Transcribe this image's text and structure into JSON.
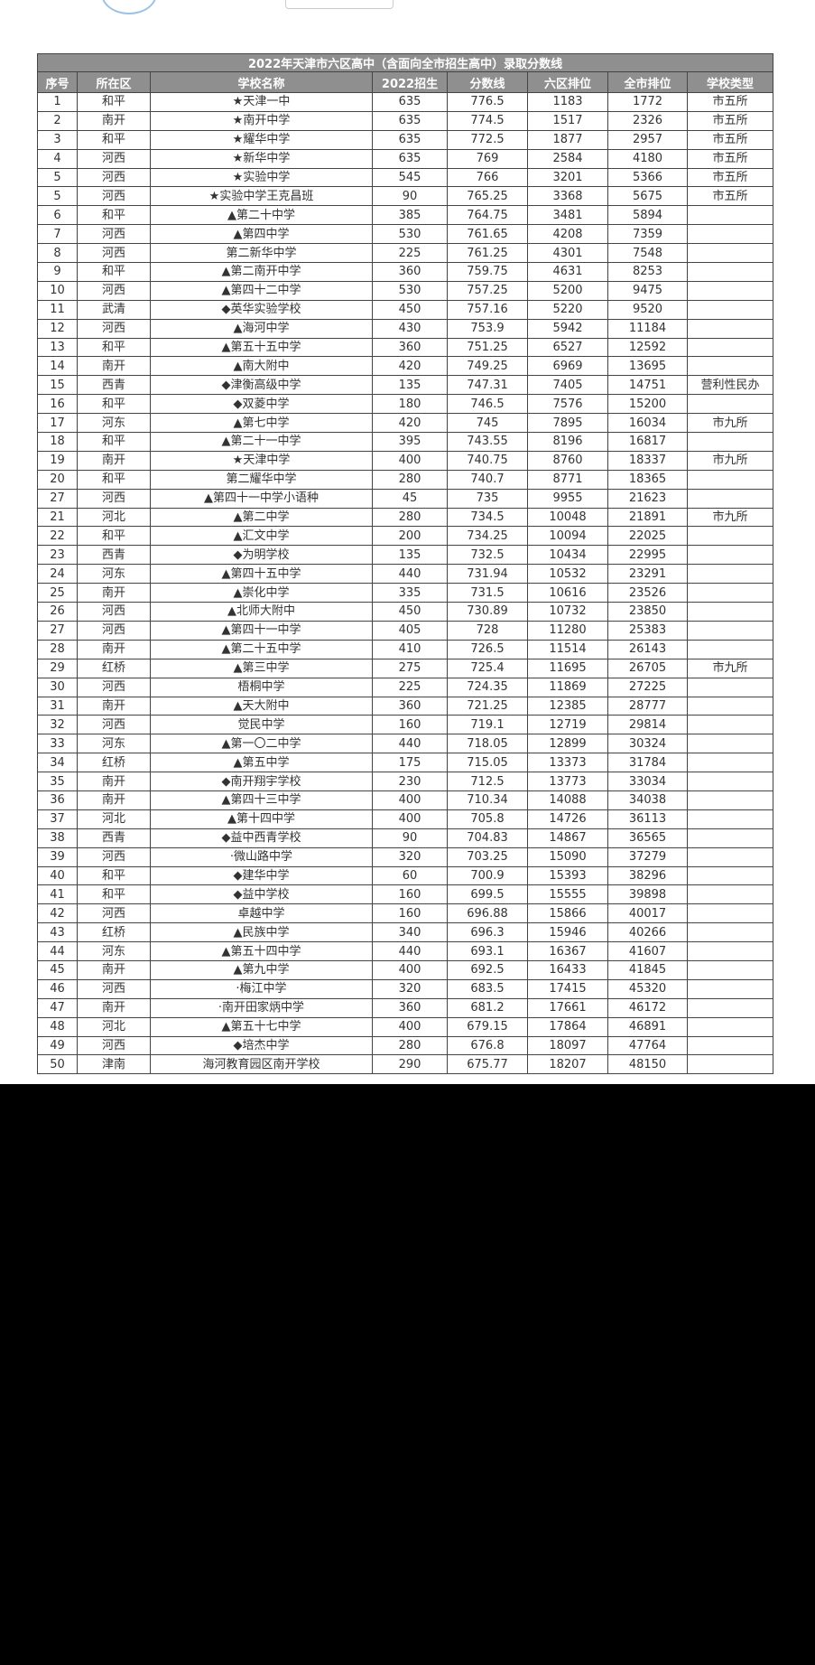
{
  "table": {
    "title": "2022年天津市六区高中（含面向全市招生高中）录取分数线",
    "columns": [
      "序号",
      "所在区",
      "学校名称",
      "2022招生",
      "分数线",
      "六区排位",
      "全市排位",
      "学校类型"
    ],
    "rows": [
      [
        "1",
        "和平",
        "★天津一中",
        "635",
        "776.5",
        "1183",
        "1772",
        "市五所"
      ],
      [
        "2",
        "南开",
        "★南开中学",
        "635",
        "774.5",
        "1517",
        "2326",
        "市五所"
      ],
      [
        "3",
        "和平",
        "★耀华中学",
        "635",
        "772.5",
        "1877",
        "2957",
        "市五所"
      ],
      [
        "4",
        "河西",
        "★新华中学",
        "635",
        "769",
        "2584",
        "4180",
        "市五所"
      ],
      [
        "5",
        "河西",
        "★实验中学",
        "545",
        "766",
        "3201",
        "5366",
        "市五所"
      ],
      [
        "5",
        "河西",
        "★实验中学王克昌班",
        "90",
        "765.25",
        "3368",
        "5675",
        "市五所"
      ],
      [
        "6",
        "和平",
        "▲第二十中学",
        "385",
        "764.75",
        "3481",
        "5894"
      ],
      [
        "7",
        "河西",
        "▲第四中学",
        "530",
        "761.65",
        "4208",
        "7359"
      ],
      [
        "8",
        "河西",
        "第二新华中学",
        "225",
        "761.25",
        "4301",
        "7548"
      ],
      [
        "9",
        "和平",
        "▲第二南开中学",
        "360",
        "759.75",
        "4631",
        "8253"
      ],
      [
        "10",
        "河西",
        "▲第四十二中学",
        "530",
        "757.25",
        "5200",
        "9475"
      ],
      [
        "11",
        "武清",
        "◆英华实验学校",
        "450",
        "757.16",
        "5220",
        "9520"
      ],
      [
        "12",
        "河西",
        "▲海河中学",
        "430",
        "753.9",
        "5942",
        "11184"
      ],
      [
        "13",
        "和平",
        "▲第五十五中学",
        "360",
        "751.25",
        "6527",
        "12592"
      ],
      [
        "14",
        "南开",
        "▲南大附中",
        "420",
        "749.25",
        "6969",
        "13695"
      ],
      [
        "15",
        "西青",
        "◆津衡高级中学",
        "135",
        "747.31",
        "7405",
        "14751",
        "营利性民办"
      ],
      [
        "16",
        "和平",
        "◆双菱中学",
        "180",
        "746.5",
        "7576",
        "15200"
      ],
      [
        "17",
        "河东",
        "▲第七中学",
        "420",
        "745",
        "7895",
        "16034",
        "市九所"
      ],
      [
        "18",
        "和平",
        "▲第二十一中学",
        "395",
        "743.55",
        "8196",
        "16817"
      ],
      [
        "19",
        "南开",
        "★天津中学",
        "400",
        "740.75",
        "8760",
        "18337",
        "市九所"
      ],
      [
        "20",
        "和平",
        "第二耀华中学",
        "280",
        "740.7",
        "8771",
        "18365"
      ],
      [
        "27",
        "河西",
        "▲第四十一中学小语种",
        "45",
        "735",
        "9955",
        "21623"
      ],
      [
        "21",
        "河北",
        "▲第二中学",
        "280",
        "734.5",
        "10048",
        "21891",
        "市九所"
      ],
      [
        "22",
        "和平",
        "▲汇文中学",
        "200",
        "734.25",
        "10094",
        "22025"
      ],
      [
        "23",
        "西青",
        "◆为明学校",
        "135",
        "732.5",
        "10434",
        "22995"
      ],
      [
        "24",
        "河东",
        "▲第四十五中学",
        "440",
        "731.94",
        "10532",
        "23291"
      ],
      [
        "25",
        "南开",
        "▲崇化中学",
        "335",
        "731.5",
        "10616",
        "23526"
      ],
      [
        "26",
        "河西",
        "▲北师大附中",
        "450",
        "730.89",
        "10732",
        "23850"
      ],
      [
        "27",
        "河西",
        "▲第四十一中学",
        "405",
        "728",
        "11280",
        "25383"
      ],
      [
        "28",
        "南开",
        "▲第二十五中学",
        "410",
        "726.5",
        "11514",
        "26143"
      ],
      [
        "29",
        "红桥",
        "▲第三中学",
        "275",
        "725.4",
        "11695",
        "26705",
        "市九所"
      ],
      [
        "30",
        "河西",
        "梧桐中学",
        "225",
        "724.35",
        "11869",
        "27225"
      ],
      [
        "31",
        "南开",
        "▲天大附中",
        "360",
        "721.25",
        "12385",
        "28777"
      ],
      [
        "32",
        "河西",
        "觉民中学",
        "160",
        "719.1",
        "12719",
        "29814"
      ],
      [
        "33",
        "河东",
        "▲第一〇二中学",
        "440",
        "718.05",
        "12899",
        "30324"
      ],
      [
        "34",
        "红桥",
        "▲第五中学",
        "175",
        "715.05",
        "13373",
        "31784"
      ],
      [
        "35",
        "南开",
        "◆南开翔宇学校",
        "230",
        "712.5",
        "13773",
        "33034"
      ],
      [
        "36",
        "南开",
        "▲第四十三中学",
        "400",
        "710.34",
        "14088",
        "34038"
      ],
      [
        "37",
        "河北",
        "▲第十四中学",
        "400",
        "705.8",
        "14726",
        "36113"
      ],
      [
        "38",
        "西青",
        "◆益中西青学校",
        "90",
        "704.83",
        "14867",
        "36565"
      ],
      [
        "39",
        "河西",
        "·微山路中学",
        "320",
        "703.25",
        "15090",
        "37279"
      ],
      [
        "40",
        "和平",
        "◆建华中学",
        "60",
        "700.9",
        "15393",
        "38296"
      ],
      [
        "41",
        "和平",
        "◆益中学校",
        "160",
        "699.5",
        "15555",
        "39898"
      ],
      [
        "42",
        "河西",
        "卓越中学",
        "160",
        "696.88",
        "15866",
        "40017"
      ],
      [
        "43",
        "红桥",
        "▲民族中学",
        "340",
        "696.3",
        "15946",
        "40266"
      ],
      [
        "44",
        "河东",
        "▲第五十四中学",
        "440",
        "693.1",
        "16367",
        "41607"
      ],
      [
        "45",
        "南开",
        "▲第九中学",
        "400",
        "692.5",
        "16433",
        "41845"
      ],
      [
        "46",
        "河西",
        "·梅江中学",
        "320",
        "683.5",
        "17415",
        "45320"
      ],
      [
        "47",
        "南开",
        "·南开田家炳中学",
        "360",
        "681.2",
        "17661",
        "46172"
      ],
      [
        "48",
        "河北",
        "▲第五十七中学",
        "400",
        "679.15",
        "17864",
        "46891"
      ],
      [
        "49",
        "河西",
        "◆培杰中学",
        "280",
        "676.8",
        "18097",
        "47764"
      ],
      [
        "50",
        "津南",
        "海河教育园区南开学校",
        "290",
        "675.77",
        "18207",
        "48150"
      ]
    ]
  }
}
